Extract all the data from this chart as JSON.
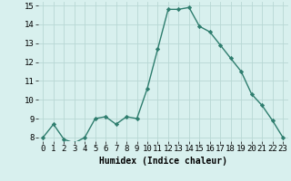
{
  "x": [
    0,
    1,
    2,
    3,
    4,
    5,
    6,
    7,
    8,
    9,
    10,
    11,
    12,
    13,
    14,
    15,
    16,
    17,
    18,
    19,
    20,
    21,
    22,
    23
  ],
  "y": [
    8.0,
    8.7,
    7.9,
    7.7,
    8.0,
    9.0,
    9.1,
    8.7,
    9.1,
    9.0,
    10.6,
    12.7,
    14.8,
    14.8,
    14.9,
    13.9,
    13.6,
    12.9,
    12.2,
    11.5,
    10.3,
    9.7,
    8.9,
    8.0
  ],
  "xlabel": "Humidex (Indice chaleur)",
  "ylim_min": 7.8,
  "ylim_max": 15.2,
  "xlim_min": -0.5,
  "xlim_max": 23.5,
  "yticks": [
    8,
    9,
    10,
    11,
    12,
    13,
    14,
    15
  ],
  "xticks": [
    0,
    1,
    2,
    3,
    4,
    5,
    6,
    7,
    8,
    9,
    10,
    11,
    12,
    13,
    14,
    15,
    16,
    17,
    18,
    19,
    20,
    21,
    22,
    23
  ],
  "line_color": "#2e7d6e",
  "bg_color": "#d8f0ee",
  "grid_color": "#b8d8d4",
  "marker": "D",
  "marker_size": 2.2,
  "line_width": 1.0,
  "xlabel_fontsize": 7,
  "tick_fontsize": 6.5
}
